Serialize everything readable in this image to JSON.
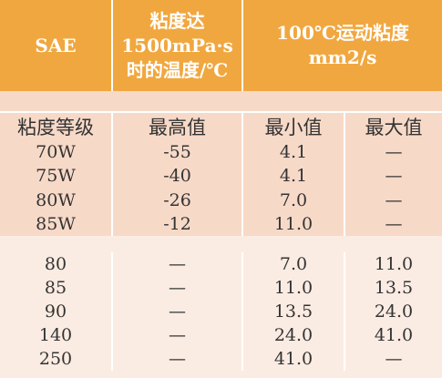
{
  "header": {
    "col1": "SAE",
    "col2_lines": [
      "粘度达",
      "1500mPa·s",
      "时的温度/℃"
    ],
    "col3_lines": [
      "100℃运动粘度",
      "mm2/s"
    ]
  },
  "subheader": [
    "粘度等级",
    "最高值",
    "最小值",
    "最大值"
  ],
  "group1": [
    [
      "70W",
      "-55",
      "4.1",
      "—"
    ],
    [
      "75W",
      "-40",
      "4.1",
      "—"
    ],
    [
      "80W",
      "-26",
      "7.0",
      "—"
    ],
    [
      "85W",
      "-12",
      "11.0",
      "—"
    ]
  ],
  "group2": [
    [
      "80",
      "—",
      "7.0",
      "11.0"
    ],
    [
      "85",
      "—",
      "11.0",
      "13.5"
    ],
    [
      "90",
      "—",
      "13.5",
      "24.0"
    ],
    [
      "140",
      "—",
      "24.0",
      "41.0"
    ],
    [
      "250",
      "—",
      "41.0",
      "—"
    ]
  ],
  "colors": {
    "header_bg": "#f1a73f",
    "band_dark": "#f7d9c8",
    "band_light": "#fbece3"
  }
}
